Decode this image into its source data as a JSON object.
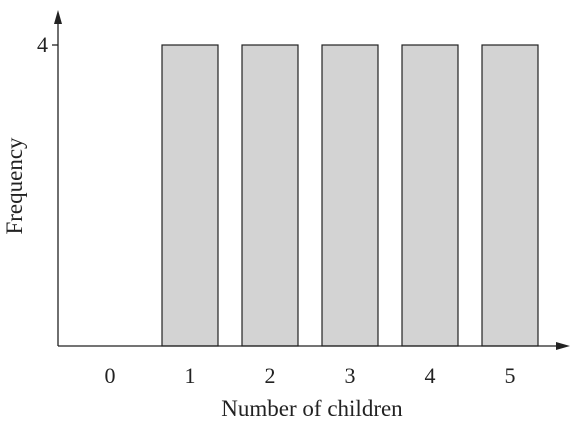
{
  "chart_data": {
    "type": "bar",
    "categories": [
      "0",
      "1",
      "2",
      "3",
      "4",
      "5"
    ],
    "values": [
      0,
      4,
      4,
      4,
      4,
      4
    ],
    "title": "",
    "xlabel": "Number of children",
    "ylabel": "Frequency",
    "ylim": [
      0,
      4
    ],
    "y_ticks": [
      4
    ],
    "grid": false,
    "bar_color": "#d3d3d3",
    "axis_color": "#222222"
  }
}
